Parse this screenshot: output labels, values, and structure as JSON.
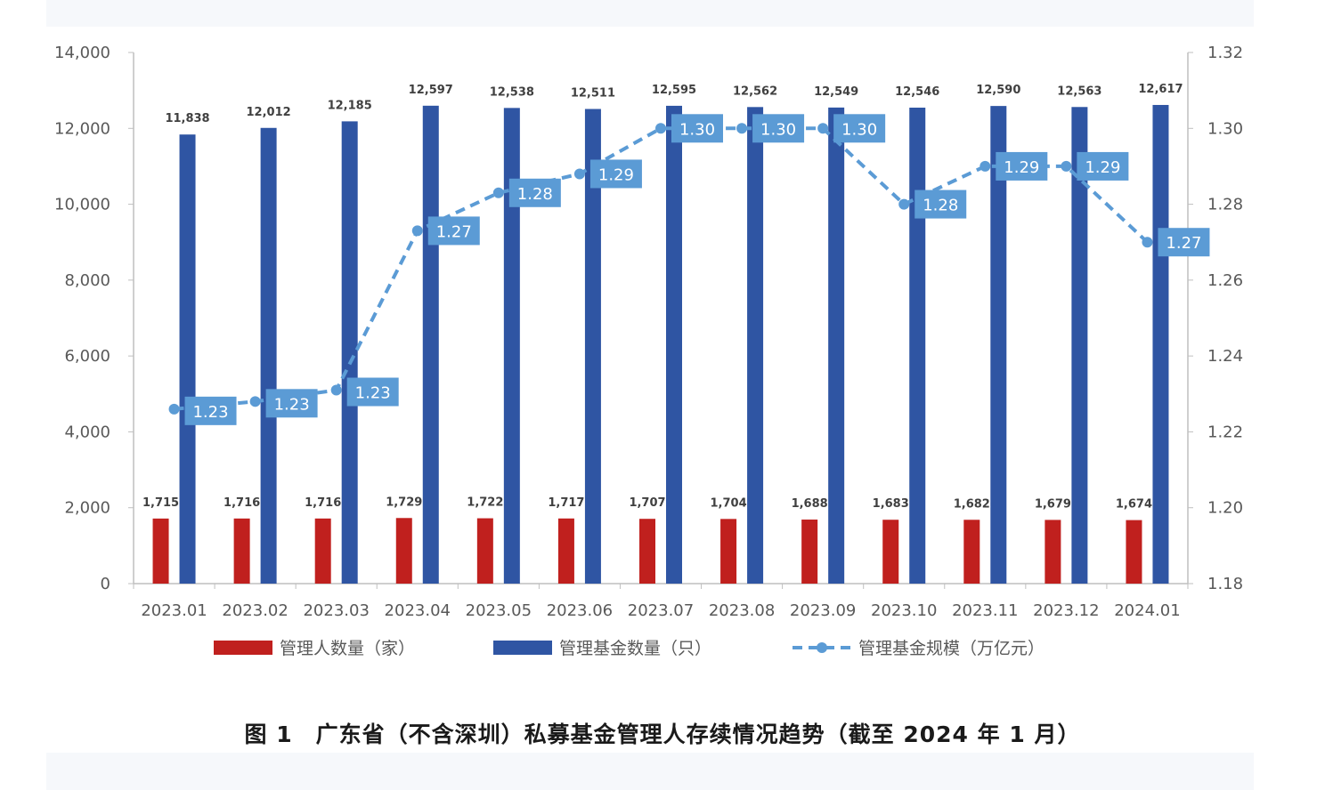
{
  "caption": "图 1　广东省（不含深圳）私募基金管理人存续情况趋势（截至 2024 年 1 月）",
  "chart_data": {
    "type": "bar",
    "categories": [
      "2023.01",
      "2023.02",
      "2023.03",
      "2023.04",
      "2023.05",
      "2023.06",
      "2023.07",
      "2023.08",
      "2023.09",
      "2023.10",
      "2023.11",
      "2023.12",
      "2024.01"
    ],
    "series": [
      {
        "name": "管理人数量（家）",
        "type": "bar",
        "axis": "left",
        "color": "#c0201e",
        "values": [
          1715,
          1716,
          1716,
          1729,
          1722,
          1717,
          1707,
          1704,
          1688,
          1683,
          1682,
          1679,
          1674
        ],
        "labels": [
          "1,715",
          "1,716",
          "1,716",
          "1,729",
          "1,722",
          "1,717",
          "1,707",
          "1,704",
          "1,688",
          "1,683",
          "1,682",
          "1,679",
          "1,674"
        ]
      },
      {
        "name": "管理基金数量（只）",
        "type": "bar",
        "axis": "left",
        "color": "#2f55a3",
        "values": [
          11838,
          12012,
          12185,
          12597,
          12538,
          12511,
          12595,
          12562,
          12549,
          12546,
          12590,
          12563,
          12617
        ],
        "labels": [
          "11,838",
          "12,012",
          "12,185",
          "12,597",
          "12,538",
          "12,511",
          "12,595",
          "12,562",
          "12,549",
          "12,546",
          "12,590",
          "12,563",
          "12,617"
        ]
      },
      {
        "name": "管理基金规模（万亿元）",
        "type": "line",
        "style": "dashed",
        "axis": "right",
        "color": "#5b9bd5",
        "values": [
          1.226,
          1.228,
          1.231,
          1.273,
          1.283,
          1.288,
          1.3,
          1.3,
          1.3,
          1.28,
          1.29,
          1.29,
          1.27
        ],
        "labels": [
          "1.23",
          "1.23",
          "1.23",
          "1.27",
          "1.28",
          "1.29",
          "1.30",
          "1.30",
          "1.30",
          "1.28",
          "1.29",
          "1.29",
          "1.27"
        ]
      }
    ],
    "y_left": {
      "ylim": [
        0,
        14000
      ],
      "ticks": [
        0,
        2000,
        4000,
        6000,
        8000,
        10000,
        12000,
        14000
      ],
      "tick_labels": [
        "0",
        "2,000",
        "4,000",
        "6,000",
        "8,000",
        "10,000",
        "12,000",
        "14,000"
      ]
    },
    "y_right": {
      "ylim": [
        1.18,
        1.32
      ],
      "ticks": [
        1.18,
        1.2,
        1.22,
        1.24,
        1.26,
        1.28,
        1.3,
        1.32
      ],
      "tick_labels": [
        "1.18",
        "1.20",
        "1.22",
        "1.24",
        "1.26",
        "1.28",
        "1.30",
        "1.32"
      ]
    },
    "grid": false,
    "legend": "bottom"
  }
}
